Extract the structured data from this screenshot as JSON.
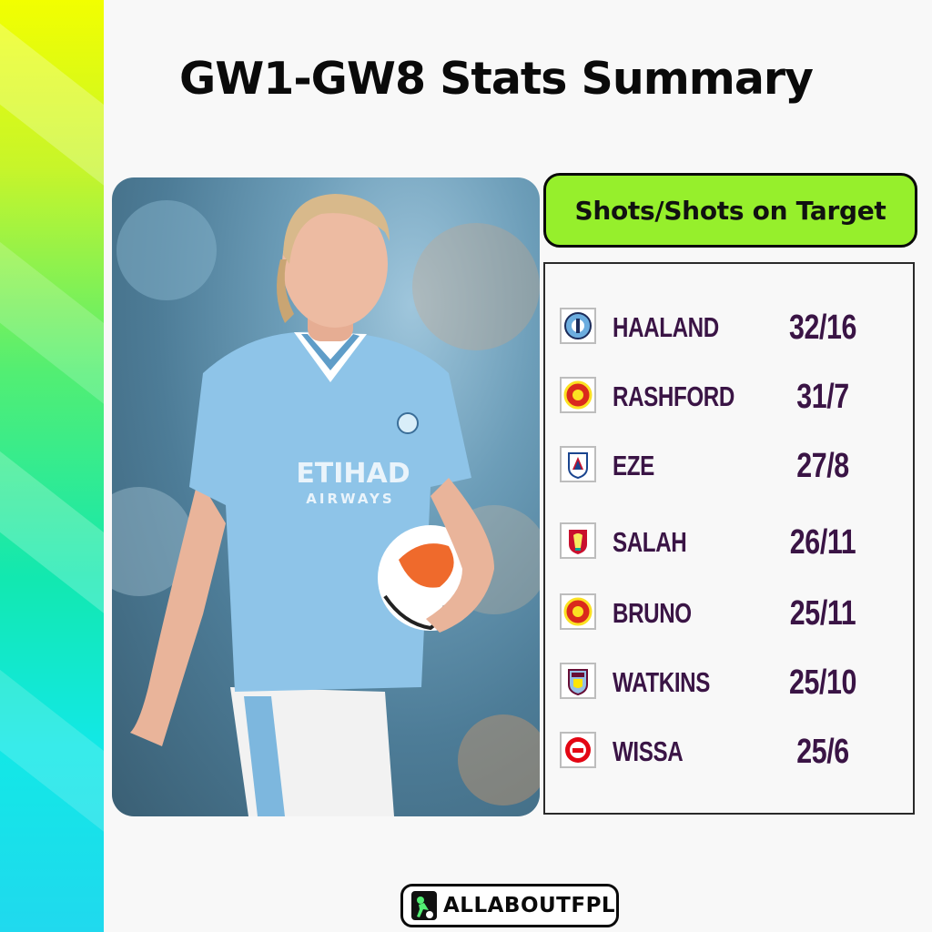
{
  "title": "GW1-GW8 Stats Summary",
  "stat_header": "Shots/Shots on Target",
  "photo": {
    "sponsor": "ETIHAD",
    "sponsor_sub": "AIRWAYS"
  },
  "players": [
    {
      "name": "HAALAND",
      "value": "32/16",
      "crest": "man-city-crest-icon",
      "crest_color": "#6caddf"
    },
    {
      "name": "RASHFORD",
      "value": "31/7",
      "crest": "man-utd-crest-icon",
      "crest_color": "#da291c"
    },
    {
      "name": "EZE",
      "value": "27/8",
      "crest": "crystal-palace-crest-icon",
      "crest_color": "#1b458f"
    },
    {
      "name": "SALAH",
      "value": "26/11",
      "crest": "liverpool-crest-icon",
      "crest_color": "#c8102e"
    },
    {
      "name": "BRUNO",
      "value": "25/11",
      "crest": "man-utd-crest-icon",
      "crest_color": "#da291c"
    },
    {
      "name": "WATKINS",
      "value": "25/10",
      "crest": "aston-villa-crest-icon",
      "crest_color": "#95bfe5"
    },
    {
      "name": "WISSA",
      "value": "25/6",
      "crest": "brentford-crest-icon",
      "crest_color": "#e30613"
    }
  ],
  "brand": "ALLABOUTFPL",
  "colors": {
    "accent_green": "#96ef2c",
    "text_purple": "#3a1445"
  }
}
